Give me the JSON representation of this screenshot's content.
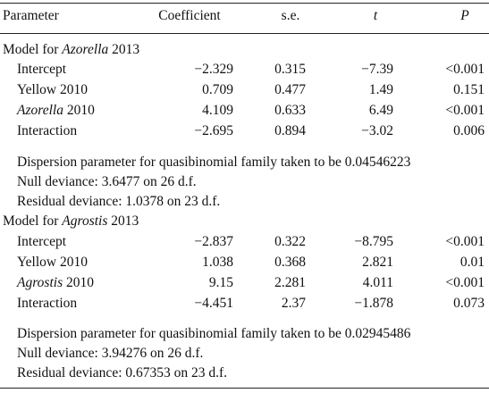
{
  "header": {
    "parameter": "Parameter",
    "coefficient": "Coefficient",
    "se": "s.e.",
    "t": "t",
    "p": "P"
  },
  "model1": {
    "title_prefix": "Model for ",
    "title_italic": "Azorella",
    "title_suffix": " 2013",
    "rows": [
      {
        "param": "Intercept",
        "coef": "−2.329",
        "se": "0.315",
        "t": "−7.39",
        "p": "<0.001"
      },
      {
        "param": "Yellow 2010",
        "coef": "0.709",
        "se": "0.477",
        "t": "1.49",
        "p": "0.151"
      },
      {
        "param_italic": "Azorella",
        "param_suffix": " 2010",
        "coef": "4.109",
        "se": "0.633",
        "t": "6.49",
        "p": "<0.001"
      },
      {
        "param": "Interaction",
        "coef": "−2.695",
        "se": "0.894",
        "t": "−3.02",
        "p": "0.006"
      }
    ],
    "notes": [
      "Dispersion parameter for quasibinomial family taken to be 0.04546223",
      "Null deviance: 3.6477 on 26 d.f.",
      "Residual deviance: 1.0378 on 23 d.f."
    ]
  },
  "model2": {
    "title_prefix": "Model for ",
    "title_italic": "Agrostis",
    "title_suffix": " 2013",
    "rows": [
      {
        "param": "Intercept",
        "coef": "−2.837",
        "se": "0.322",
        "t": "−8.795",
        "p": "<0.001"
      },
      {
        "param": "Yellow 2010",
        "coef": "1.038",
        "se": "0.368",
        "t": "2.821",
        "p": "0.01"
      },
      {
        "param_italic": "Agrostis",
        "param_suffix": " 2010",
        "coef": "9.15",
        "se": "2.281",
        "t": "4.011",
        "p": "<0.001"
      },
      {
        "param": "Interaction",
        "coef": "−4.451",
        "se": "2.37",
        "t": "−1.878",
        "p": "0.073"
      }
    ],
    "notes": [
      "Dispersion parameter for quasibinomial family taken to be 0.02945486",
      "Null deviance: 3.94276 on 26 d.f.",
      "Residual deviance: 0.67353 on 23 d.f."
    ]
  }
}
